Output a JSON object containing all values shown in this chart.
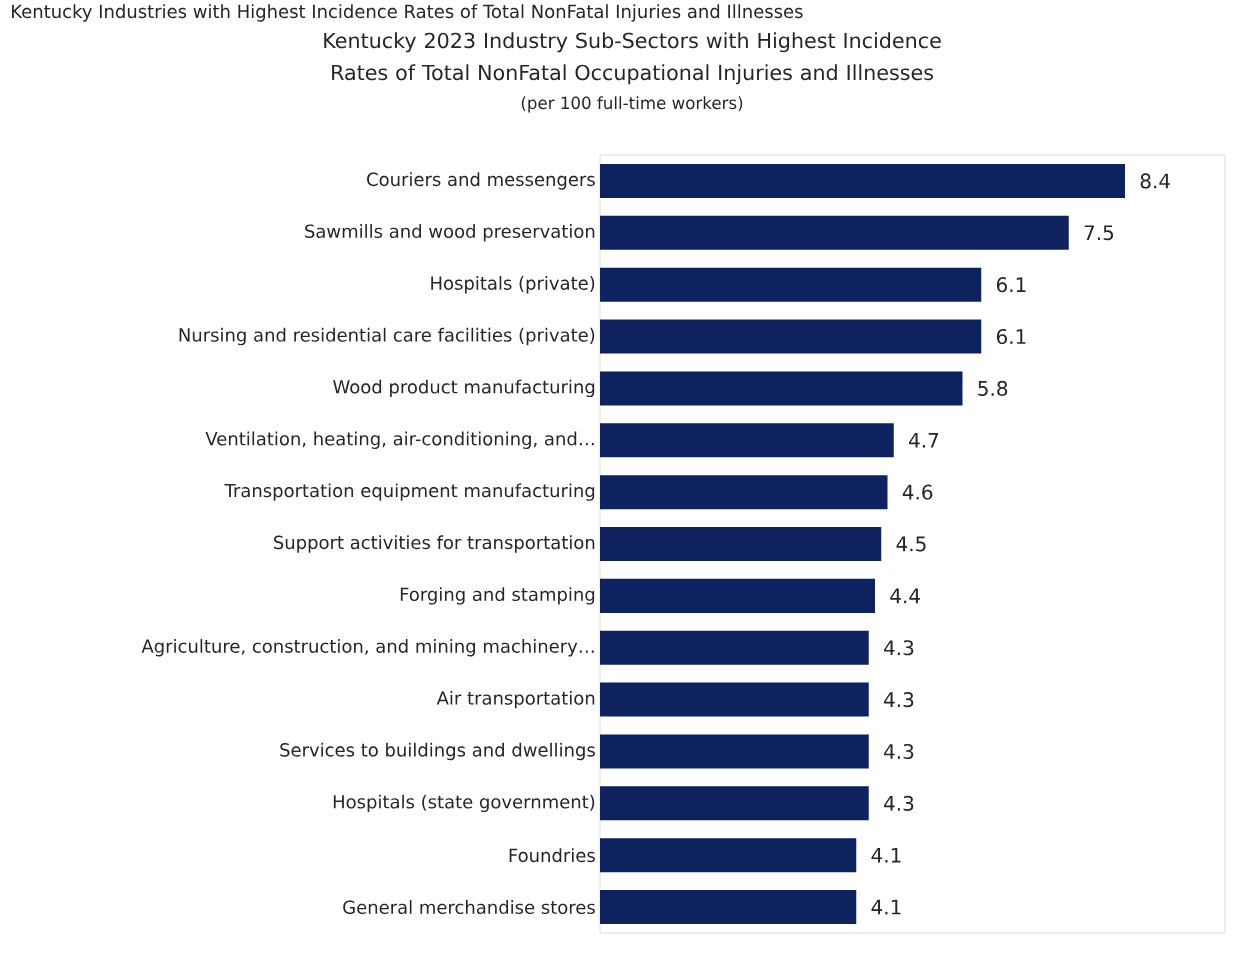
{
  "chart_data": {
    "type": "bar",
    "orientation": "horizontal",
    "title": "Kentucky 2023 Industry Sub-Sectors with Highest Incidence Rates of Total NonFatal Occupational Injuries and Illnesses",
    "subtitle": "(per 100 full-time workers)",
    "annotations": [
      "Kentucky Industries with Highest Incidence Rates of Total NonFatal Injuries and Illnesses"
    ],
    "categories": [
      "Couriers and messengers",
      "Sawmills and wood preservation",
      "Hospitals (private)",
      "Nursing and residential care facilities (private)",
      "Wood product manufacturing",
      "Ventilation, heating, air-conditioning, and…",
      "Transportation equipment manufacturing",
      "Support activities for transportation",
      "Forging and stamping",
      "Agriculture, construction, and mining machinery…",
      "Air transportation",
      "Services to buildings and dwellings",
      "Hospitals (state government)",
      "Foundries",
      "General merchandise stores"
    ],
    "values": [
      8.4,
      7.5,
      6.1,
      6.1,
      5.8,
      4.7,
      4.6,
      4.5,
      4.4,
      4.3,
      4.3,
      4.3,
      4.3,
      4.1,
      4.1
    ],
    "color": "#0e2260",
    "xlim": [
      0,
      10
    ],
    "tick_labels": "y",
    "data_labels": true
  }
}
